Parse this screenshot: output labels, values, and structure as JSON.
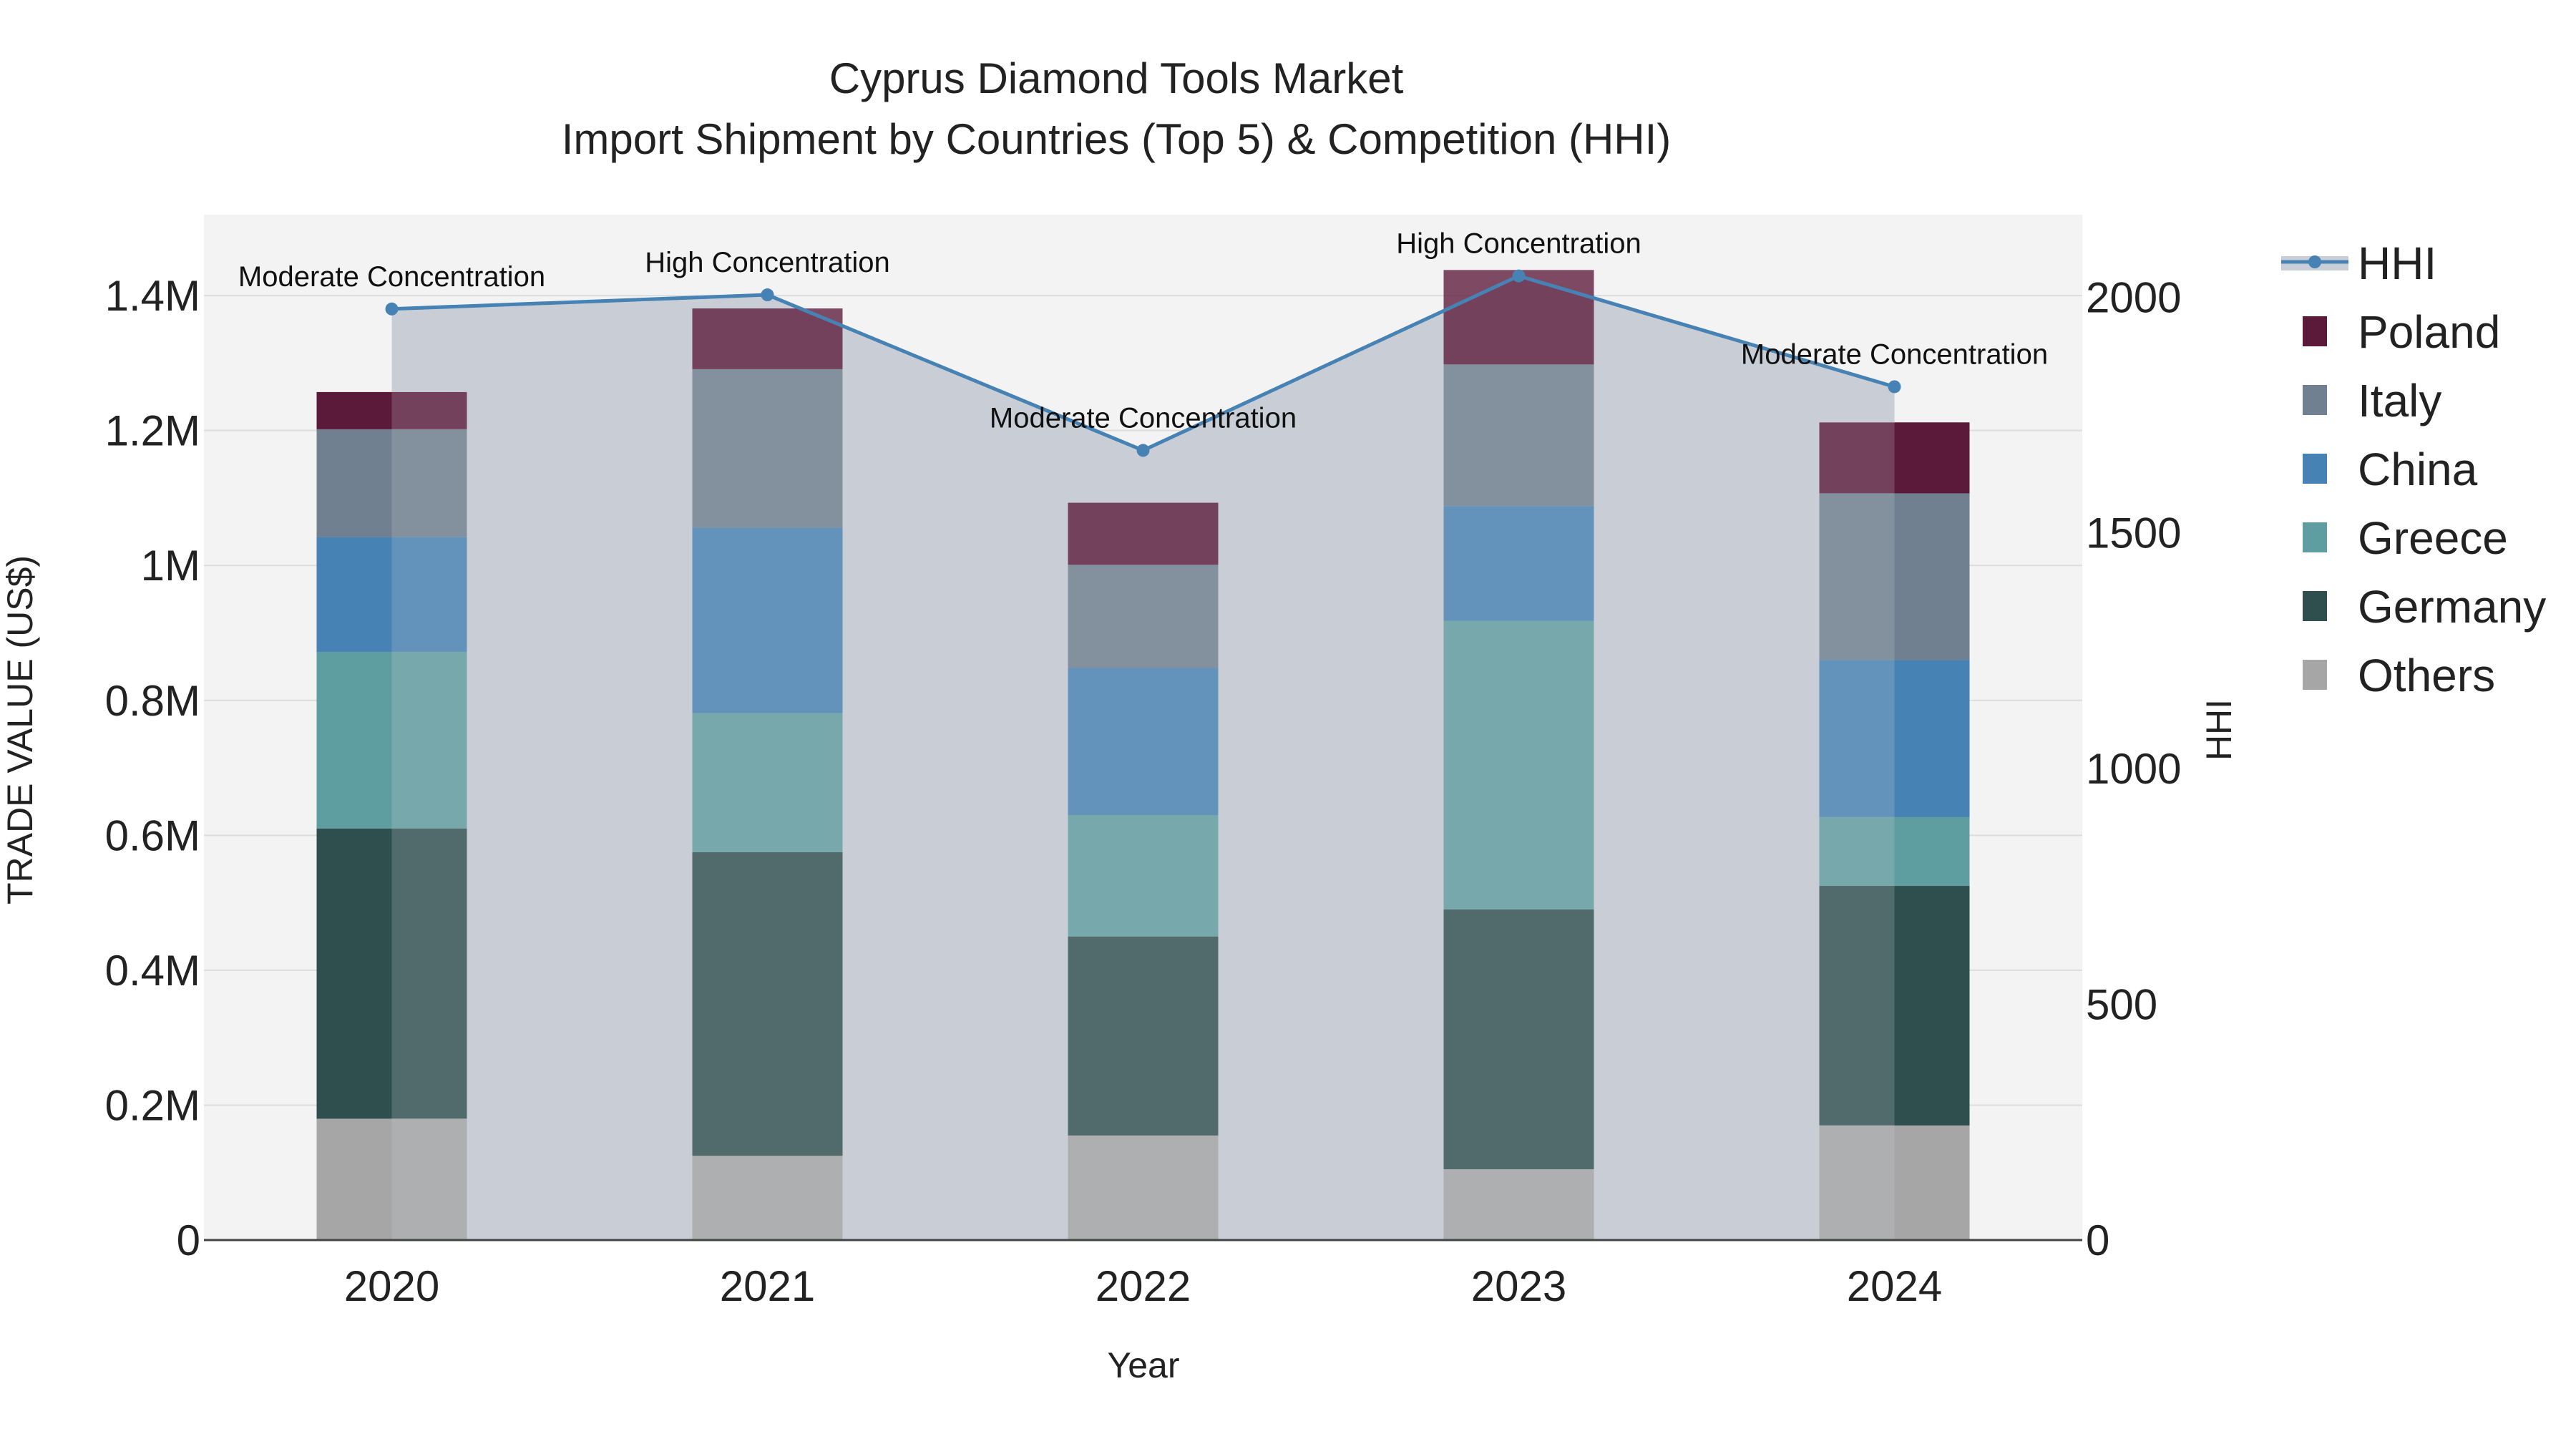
{
  "chart_data": {
    "type": "bar",
    "title_line1": "Cyprus Diamond Tools Market",
    "title_line2": "Import Shipment by Countries (Top 5) & Competition (HHI)",
    "xlabel": "Year",
    "ylabel": "TRADE VALUE (US$)",
    "y2label": "HHI",
    "categories": [
      "2020",
      "2021",
      "2022",
      "2023",
      "2024"
    ],
    "ylim": [
      0,
      1520000
    ],
    "y2lim": [
      0,
      2175
    ],
    "yticks": [
      0,
      200000,
      400000,
      600000,
      800000,
      1000000,
      1200000,
      1400000
    ],
    "ytick_labels": [
      "0",
      "0.2M",
      "0.4M",
      "0.6M",
      "0.8M",
      "1M",
      "1.2M",
      "1.4M"
    ],
    "y2ticks": [
      0,
      500,
      1000,
      1500,
      2000
    ],
    "y2tick_labels": [
      "0",
      "500",
      "1000",
      "1500",
      "2000"
    ],
    "series": [
      {
        "name": "Others",
        "color": "#a6a6a6",
        "values": [
          180000,
          125000,
          155000,
          105000,
          170000
        ]
      },
      {
        "name": "Germany",
        "color": "#2f4f4f",
        "values": [
          430000,
          450000,
          295000,
          385000,
          355000
        ]
      },
      {
        "name": "Greece",
        "color": "#5f9ea0",
        "values": [
          262000,
          206000,
          180000,
          428000,
          102000
        ]
      },
      {
        "name": "China",
        "color": "#4682b4",
        "values": [
          170000,
          275000,
          218000,
          170000,
          233000
        ]
      },
      {
        "name": "Italy",
        "color": "#708090",
        "values": [
          160000,
          235000,
          153000,
          210000,
          247000
        ]
      },
      {
        "name": "Poland",
        "color": "#5c1a3a",
        "values": [
          55000,
          90000,
          92000,
          140000,
          105000
        ]
      }
    ],
    "highlight": [
      "left",
      "none",
      "none",
      "none",
      "right"
    ],
    "hhi": {
      "name": "HHI",
      "color": "#4682b4",
      "values": [
        1975,
        2005,
        1675,
        2045,
        1810
      ],
      "labels": [
        "Moderate Concentration",
        "High Concentration",
        "Moderate Concentration",
        "High Concentration",
        "Moderate Concentration"
      ]
    },
    "legend": [
      "HHI",
      "Poland",
      "Italy",
      "China",
      "Greece",
      "Germany",
      "Others"
    ],
    "legend_position": "right"
  }
}
